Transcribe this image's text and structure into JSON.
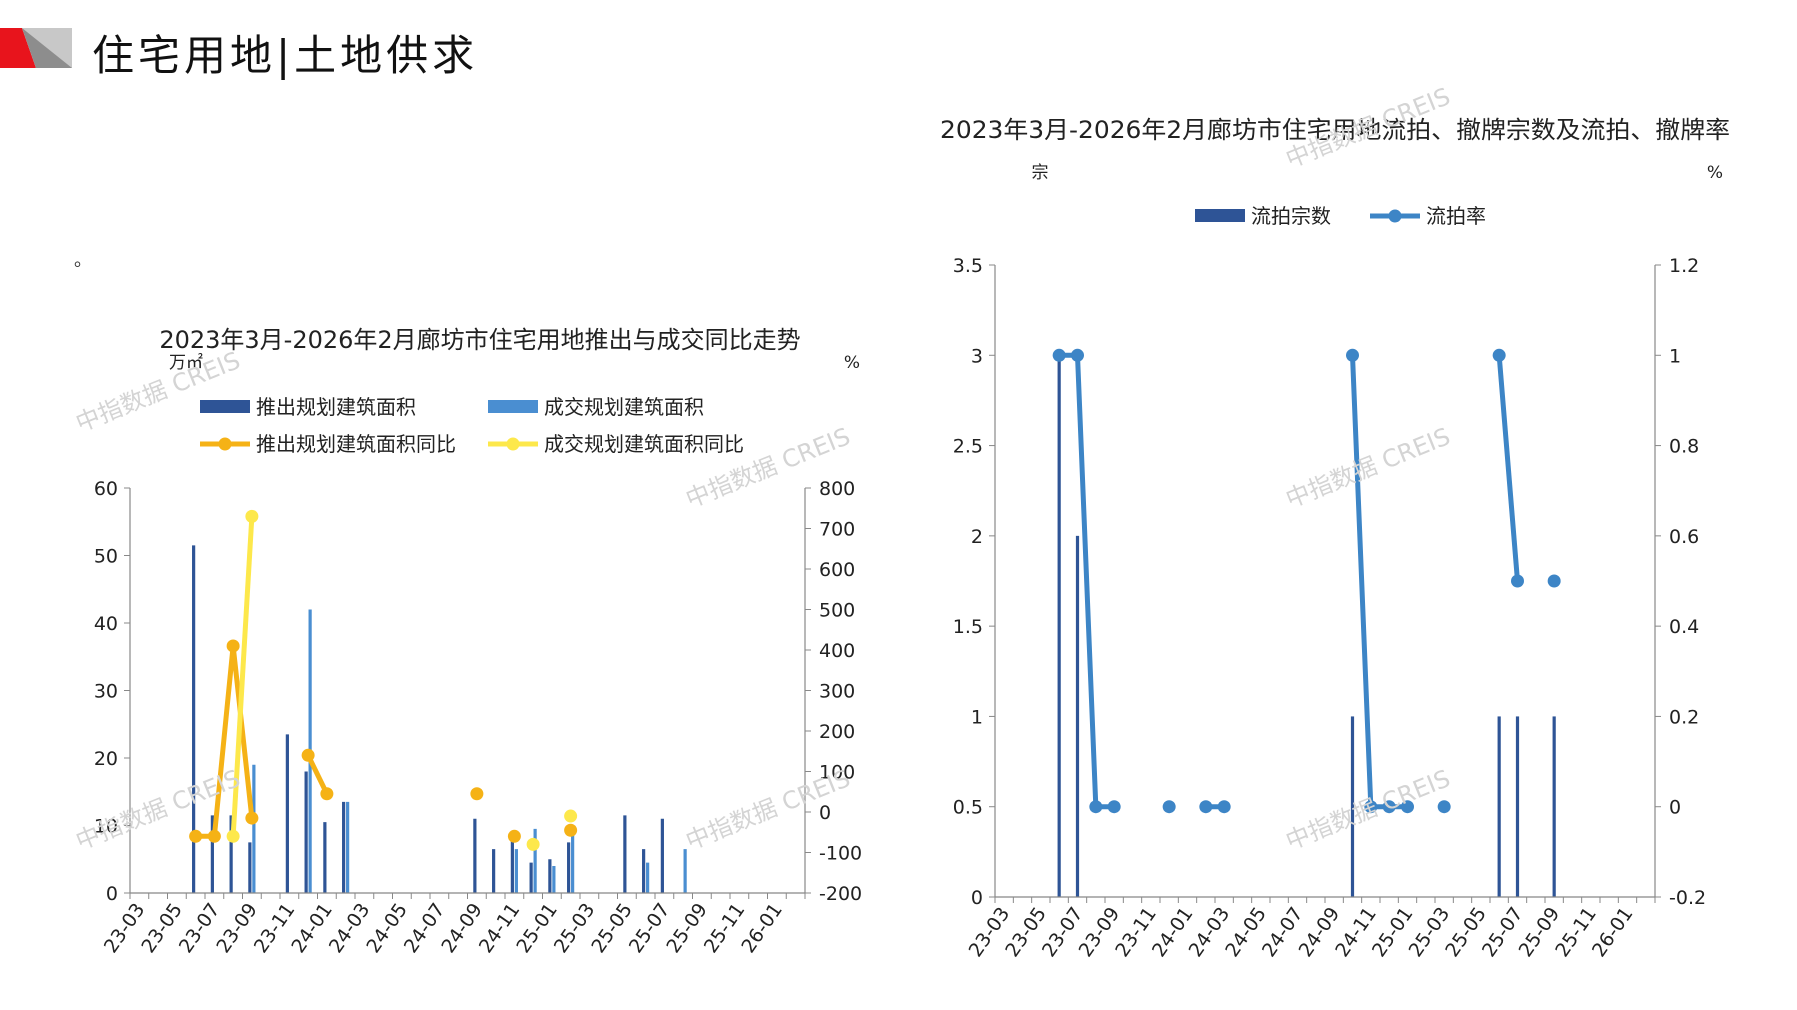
{
  "page": {
    "title": "住宅用地|土地供求",
    "note": "。",
    "watermark": "中指数据 CREIS"
  },
  "colors": {
    "accent_red": "#e8141c",
    "accent_gray": "#9b9b9b",
    "dark_blue": "#2e5496",
    "mid_blue": "#4a8ed1",
    "orange": "#f5b216",
    "yellow": "#fde84b",
    "rate_blue": "#3d85c6"
  },
  "chart_data": [
    {
      "type": "bar+line",
      "title": "2023年3月-2026年2月廊坊市住宅用地推出与成交同比走势",
      "ylabel_left": "万㎡",
      "ylabel_right": "%",
      "ylim_left": [
        0,
        60
      ],
      "yticks_left": [
        0,
        10,
        20,
        30,
        40,
        50,
        60
      ],
      "ylim_right": [
        -200,
        800
      ],
      "yticks_right": [
        -200,
        -100,
        0,
        100,
        200,
        300,
        400,
        500,
        600,
        700,
        800
      ],
      "legend_position": "top",
      "x": [
        "23-03",
        "23-04",
        "23-05",
        "23-06",
        "23-07",
        "23-08",
        "23-09",
        "23-10",
        "23-11",
        "23-12",
        "24-01",
        "24-02",
        "24-03",
        "24-04",
        "24-05",
        "24-06",
        "24-07",
        "24-08",
        "24-09",
        "24-10",
        "24-11",
        "24-12",
        "25-01",
        "25-02",
        "25-03",
        "25-04",
        "25-05",
        "25-06",
        "25-07",
        "25-08",
        "25-09",
        "25-10",
        "25-11",
        "25-12",
        "26-01",
        "26-02"
      ],
      "xtick_labels": [
        "23-03",
        "23-05",
        "23-07",
        "23-09",
        "23-11",
        "24-01",
        "24-03",
        "24-05",
        "24-07",
        "24-09",
        "24-11",
        "25-01",
        "25-03",
        "25-05",
        "25-07",
        "25-09",
        "25-11",
        "26-01"
      ],
      "series": [
        {
          "name": "推出规划建筑面积",
          "type": "bar",
          "axis": "left",
          "color": "#2e5496",
          "values": [
            0,
            0,
            0,
            51.5,
            11.5,
            11.5,
            7.5,
            0,
            23.5,
            18,
            10.5,
            13.5,
            0,
            0,
            0,
            0,
            0,
            0,
            11,
            6.5,
            9,
            4.5,
            5,
            7.5,
            0,
            0,
            11.5,
            6.5,
            11,
            0,
            0,
            0,
            0,
            0,
            0,
            0
          ]
        },
        {
          "name": "成交规划建筑面积",
          "type": "bar",
          "axis": "left",
          "color": "#4a8ed1",
          "values": [
            0,
            0,
            0,
            0,
            0,
            0,
            19,
            0,
            0,
            42,
            0,
            13.5,
            0,
            0,
            0,
            0,
            0,
            0,
            0,
            0,
            6.5,
            9.5,
            4,
            9.5,
            0,
            0,
            0,
            4.5,
            0,
            6.5,
            0,
            0,
            0,
            0,
            0,
            0
          ]
        },
        {
          "name": "推出规划建筑面积同比",
          "type": "line",
          "axis": "right",
          "color": "#f5b216",
          "values": [
            null,
            null,
            null,
            -60,
            -60,
            410,
            -15,
            null,
            null,
            140,
            45,
            null,
            null,
            null,
            null,
            null,
            null,
            null,
            45,
            null,
            -60,
            null,
            null,
            -45,
            null,
            null,
            null,
            null,
            null,
            null,
            null,
            null,
            null,
            null,
            null,
            null
          ]
        },
        {
          "name": "成交规划建筑面积同比",
          "type": "line",
          "axis": "right",
          "color": "#fde84b",
          "values": [
            null,
            null,
            null,
            null,
            null,
            -60,
            730,
            null,
            null,
            null,
            null,
            null,
            null,
            null,
            null,
            null,
            null,
            null,
            null,
            null,
            null,
            -80,
            null,
            -10,
            null,
            null,
            null,
            null,
            null,
            null,
            null,
            null,
            null,
            null,
            null,
            null
          ]
        }
      ]
    },
    {
      "type": "bar+line",
      "title": "2023年3月-2026年2月廊坊市住宅用地流拍、撤牌宗数及流拍、撤牌率",
      "ylabel_left": "宗",
      "ylabel_right": "%",
      "ylim_left": [
        0,
        3.5
      ],
      "yticks_left": [
        0,
        0.5,
        1,
        1.5,
        2,
        2.5,
        3,
        3.5
      ],
      "ylim_right": [
        -0.2,
        1.2
      ],
      "yticks_right": [
        -0.2,
        0,
        0.2,
        0.4,
        0.6,
        0.8,
        1,
        1.2
      ],
      "legend_position": "top",
      "x": [
        "23-03",
        "23-04",
        "23-05",
        "23-06",
        "23-07",
        "23-08",
        "23-09",
        "23-10",
        "23-11",
        "23-12",
        "24-01",
        "24-02",
        "24-03",
        "24-04",
        "24-05",
        "24-06",
        "24-07",
        "24-08",
        "24-09",
        "24-10",
        "24-11",
        "24-12",
        "25-01",
        "25-02",
        "25-03",
        "25-04",
        "25-05",
        "25-06",
        "25-07",
        "25-08",
        "25-09",
        "25-10",
        "25-11",
        "25-12",
        "26-01",
        "26-02"
      ],
      "xtick_labels": [
        "23-03",
        "23-05",
        "23-07",
        "23-09",
        "23-11",
        "24-01",
        "24-03",
        "24-05",
        "24-07",
        "24-09",
        "24-11",
        "25-01",
        "25-03",
        "25-05",
        "25-07",
        "25-09",
        "25-11",
        "26-01"
      ],
      "series": [
        {
          "name": "流拍宗数",
          "type": "bar",
          "axis": "left",
          "color": "#2e5496",
          "values": [
            0,
            0,
            0,
            3,
            2,
            0,
            0,
            0,
            0,
            0,
            0,
            0,
            0,
            0,
            0,
            0,
            0,
            0,
            0,
            1,
            0,
            0,
            0,
            0,
            0,
            0,
            0,
            1,
            1,
            0,
            1,
            0,
            0,
            0,
            0,
            0
          ]
        },
        {
          "name": "流拍率",
          "type": "line",
          "axis": "right",
          "color": "#3d85c6",
          "values": [
            null,
            null,
            null,
            1,
            1,
            0,
            0,
            null,
            null,
            0,
            null,
            0,
            0,
            null,
            null,
            null,
            null,
            null,
            null,
            1,
            0,
            0,
            0,
            null,
            0,
            null,
            null,
            1,
            0.5,
            null,
            0.5,
            null,
            null,
            null,
            null,
            null
          ]
        }
      ]
    }
  ]
}
